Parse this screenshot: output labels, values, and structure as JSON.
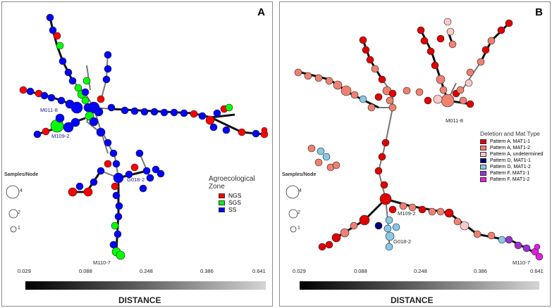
{
  "panels": [
    {
      "letter": "A",
      "legend_title": "Agroecological Zone",
      "legend_items": [
        {
          "label": "NGS",
          "color": "#ff0000"
        },
        {
          "label": "SGS",
          "color": "#00ff00"
        },
        {
          "label": "SS",
          "color": "#0000ff"
        }
      ],
      "node_labels": [
        "M011-8",
        "M109-2",
        "G018-2",
        "M110-7"
      ],
      "samples_per_node": {
        "title": "Samples/Node",
        "sizes": [
          "4",
          "2",
          "1"
        ]
      },
      "distance": {
        "title": "DISTANCE",
        "ticks": [
          "0.029",
          "0.088",
          "0.248",
          "0.386",
          "0.641"
        ]
      }
    },
    {
      "letter": "B",
      "legend_title": "Deletion and Mat Type",
      "legend_items": [
        {
          "label": "Pattern A, MAT1-1",
          "color": "#e00000"
        },
        {
          "label": "Pattern A, MAT1-2",
          "color": "#f08070"
        },
        {
          "label": "Pattern A, undetermined",
          "color": "#ffc8c8"
        },
        {
          "label": "Pattern D, MAT1-1",
          "color": "#00007a"
        },
        {
          "label": "Pattern D, MAT1-2",
          "color": "#88c8e8"
        },
        {
          "label": "Pattern F, MAT1-1",
          "color": "#9a30d0"
        },
        {
          "label": "Pattern F, MAT1-2",
          "color": "#e020e0"
        }
      ],
      "node_labels": [
        "M011-8",
        "M109-2",
        "G018-2",
        "M110-7"
      ],
      "samples_per_node": {
        "title": "Samples/Node",
        "sizes": [
          "4",
          "2",
          "1"
        ]
      },
      "distance": {
        "title": "DISTANCE",
        "ticks": [
          "0.029",
          "0.088",
          "0.248",
          "0.386",
          "0.641"
        ]
      }
    }
  ]
}
